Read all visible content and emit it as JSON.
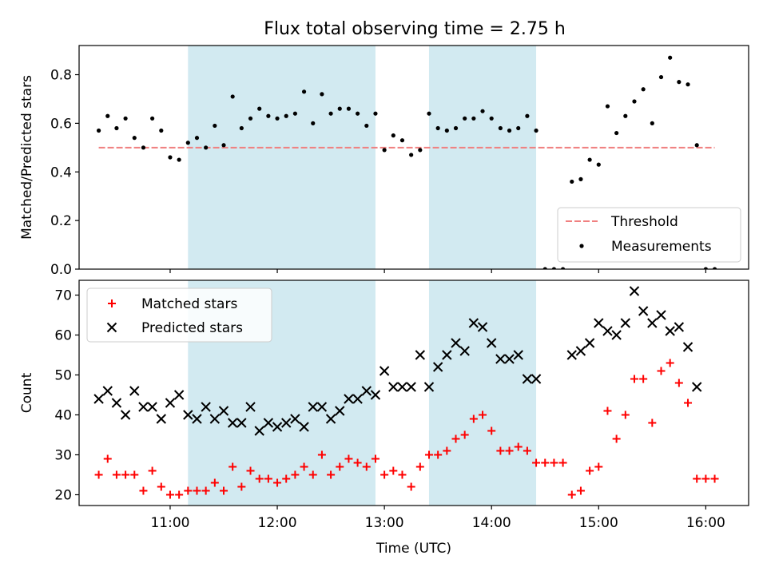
{
  "figure_title": "Flux total observing time = 2.75 h",
  "chart_data": [
    {
      "type": "scatter",
      "title": "Flux total observing time = 2.75 h",
      "xlabel": "",
      "ylabel": "Matched/Predicted stars",
      "x_range": [
        "10:09",
        "16:24"
      ],
      "ylim": [
        0,
        0.92
      ],
      "yticks": [
        "0.0",
        "0.2",
        "0.4",
        "0.6",
        "0.8"
      ],
      "x_tick_values": [
        "11:00",
        "12:00",
        "13:00",
        "14:00",
        "15:00",
        "16:00"
      ],
      "shaded_intervals": [
        [
          "11:10",
          "12:55"
        ],
        [
          "13:25",
          "14:25"
        ]
      ],
      "shade_color": "#add8e6",
      "threshold": {
        "name": "Threshold",
        "y": 0.5,
        "x_from": "10:20",
        "x_to": "16:05",
        "color": "#f08080"
      },
      "series": [
        {
          "name": "Measurements",
          "color": "#000000",
          "points": [
            [
              "10:20",
              0.57
            ],
            [
              "10:25",
              0.63
            ],
            [
              "10:30",
              0.58
            ],
            [
              "10:35",
              0.62
            ],
            [
              "10:40",
              0.54
            ],
            [
              "10:45",
              0.5
            ],
            [
              "10:50",
              0.62
            ],
            [
              "10:55",
              0.57
            ],
            [
              "11:00",
              0.46
            ],
            [
              "11:05",
              0.45
            ],
            [
              "11:10",
              0.52
            ],
            [
              "11:15",
              0.54
            ],
            [
              "11:20",
              0.5
            ],
            [
              "11:25",
              0.59
            ],
            [
              "11:30",
              0.51
            ],
            [
              "11:35",
              0.71
            ],
            [
              "11:40",
              0.58
            ],
            [
              "11:45",
              0.62
            ],
            [
              "11:50",
              0.66
            ],
            [
              "11:55",
              0.63
            ],
            [
              "12:00",
              0.62
            ],
            [
              "12:05",
              0.63
            ],
            [
              "12:10",
              0.64
            ],
            [
              "12:15",
              0.73
            ],
            [
              "12:20",
              0.6
            ],
            [
              "12:25",
              0.72
            ],
            [
              "12:30",
              0.64
            ],
            [
              "12:35",
              0.66
            ],
            [
              "12:40",
              0.66
            ],
            [
              "12:45",
              0.64
            ],
            [
              "12:50",
              0.59
            ],
            [
              "12:55",
              0.64
            ],
            [
              "13:00",
              0.49
            ],
            [
              "13:05",
              0.55
            ],
            [
              "13:10",
              0.53
            ],
            [
              "13:15",
              0.47
            ],
            [
              "13:20",
              0.49
            ],
            [
              "13:25",
              0.64
            ],
            [
              "13:30",
              0.58
            ],
            [
              "13:35",
              0.57
            ],
            [
              "13:40",
              0.58
            ],
            [
              "13:45",
              0.62
            ],
            [
              "13:50",
              0.62
            ],
            [
              "13:55",
              0.65
            ],
            [
              "14:00",
              0.62
            ],
            [
              "14:05",
              0.58
            ],
            [
              "14:10",
              0.57
            ],
            [
              "14:15",
              0.58
            ],
            [
              "14:20",
              0.63
            ],
            [
              "14:25",
              0.57
            ],
            [
              "14:30",
              0.0
            ],
            [
              "14:35",
              0.0
            ],
            [
              "14:40",
              0.0
            ],
            [
              "14:45",
              0.36
            ],
            [
              "14:50",
              0.37
            ],
            [
              "14:55",
              0.45
            ],
            [
              "15:00",
              0.43
            ],
            [
              "15:05",
              0.67
            ],
            [
              "15:10",
              0.56
            ],
            [
              "15:15",
              0.63
            ],
            [
              "15:20",
              0.69
            ],
            [
              "15:25",
              0.74
            ],
            [
              "15:30",
              0.6
            ],
            [
              "15:35",
              0.79
            ],
            [
              "15:40",
              0.87
            ],
            [
              "15:45",
              0.77
            ],
            [
              "15:50",
              0.76
            ],
            [
              "15:55",
              0.51
            ],
            [
              "16:00",
              0.0
            ],
            [
              "16:05",
              0.0
            ]
          ]
        }
      ],
      "legend": {
        "position": "lower-right",
        "entries": [
          "Threshold",
          "Measurements"
        ]
      }
    },
    {
      "type": "scatter",
      "title": "",
      "xlabel": "Time (UTC)",
      "ylabel": "Count",
      "x_range": [
        "10:09",
        "16:24"
      ],
      "ylim": [
        17.3,
        73.7
      ],
      "yticks": [
        "20",
        "30",
        "40",
        "50",
        "60",
        "70"
      ],
      "xticks": [
        "11:00",
        "12:00",
        "13:00",
        "14:00",
        "15:00",
        "16:00"
      ],
      "x_tick_values": [
        "11:00",
        "12:00",
        "13:00",
        "14:00",
        "15:00",
        "16:00"
      ],
      "shaded_intervals": [
        [
          "11:10",
          "12:55"
        ],
        [
          "13:25",
          "14:25"
        ]
      ],
      "shade_color": "#add8e6",
      "series": [
        {
          "name": "Matched stars",
          "marker": "plus",
          "color": "#ff0000",
          "points": [
            [
              "10:20",
              25
            ],
            [
              "10:25",
              29
            ],
            [
              "10:30",
              25
            ],
            [
              "10:35",
              25
            ],
            [
              "10:40",
              25
            ],
            [
              "10:45",
              21
            ],
            [
              "10:50",
              26
            ],
            [
              "10:55",
              22
            ],
            [
              "11:00",
              20
            ],
            [
              "11:05",
              20
            ],
            [
              "11:10",
              21
            ],
            [
              "11:15",
              21
            ],
            [
              "11:20",
              21
            ],
            [
              "11:25",
              23
            ],
            [
              "11:30",
              21
            ],
            [
              "11:35",
              27
            ],
            [
              "11:40",
              22
            ],
            [
              "11:45",
              26
            ],
            [
              "11:50",
              24
            ],
            [
              "11:55",
              24
            ],
            [
              "12:00",
              23
            ],
            [
              "12:05",
              24
            ],
            [
              "12:10",
              25
            ],
            [
              "12:15",
              27
            ],
            [
              "12:20",
              25
            ],
            [
              "12:25",
              30
            ],
            [
              "12:30",
              25
            ],
            [
              "12:35",
              27
            ],
            [
              "12:40",
              29
            ],
            [
              "12:45",
              28
            ],
            [
              "12:50",
              27
            ],
            [
              "12:55",
              29
            ],
            [
              "13:00",
              25
            ],
            [
              "13:05",
              26
            ],
            [
              "13:10",
              25
            ],
            [
              "13:15",
              22
            ],
            [
              "13:20",
              27
            ],
            [
              "13:25",
              30
            ],
            [
              "13:30",
              30
            ],
            [
              "13:35",
              31
            ],
            [
              "13:40",
              34
            ],
            [
              "13:45",
              35
            ],
            [
              "13:50",
              39
            ],
            [
              "13:55",
              40
            ],
            [
              "14:00",
              36
            ],
            [
              "14:05",
              31
            ],
            [
              "14:10",
              31
            ],
            [
              "14:15",
              32
            ],
            [
              "14:20",
              31
            ],
            [
              "14:25",
              28
            ],
            [
              "14:30",
              28
            ],
            [
              "14:35",
              28
            ],
            [
              "14:40",
              28
            ],
            [
              "14:45",
              20
            ],
            [
              "14:50",
              21
            ],
            [
              "14:55",
              26
            ],
            [
              "15:00",
              27
            ],
            [
              "15:05",
              41
            ],
            [
              "15:10",
              34
            ],
            [
              "15:15",
              40
            ],
            [
              "15:20",
              49
            ],
            [
              "15:25",
              49
            ],
            [
              "15:30",
              38
            ],
            [
              "15:35",
              51
            ],
            [
              "15:40",
              53
            ],
            [
              "15:45",
              48
            ],
            [
              "15:50",
              43
            ],
            [
              "15:55",
              24
            ],
            [
              "16:00",
              24
            ],
            [
              "16:05",
              24
            ]
          ]
        },
        {
          "name": "Predicted stars",
          "marker": "x",
          "color": "#000000",
          "points": [
            [
              "10:20",
              44
            ],
            [
              "10:25",
              46
            ],
            [
              "10:30",
              43
            ],
            [
              "10:35",
              40
            ],
            [
              "10:40",
              46
            ],
            [
              "10:45",
              42
            ],
            [
              "10:50",
              42
            ],
            [
              "10:55",
              39
            ],
            [
              "11:00",
              43
            ],
            [
              "11:05",
              45
            ],
            [
              "11:10",
              40
            ],
            [
              "11:15",
              39
            ],
            [
              "11:20",
              42
            ],
            [
              "11:25",
              39
            ],
            [
              "11:30",
              41
            ],
            [
              "11:35",
              38
            ],
            [
              "11:40",
              38
            ],
            [
              "11:45",
              42
            ],
            [
              "11:50",
              36
            ],
            [
              "11:55",
              38
            ],
            [
              "12:00",
              37
            ],
            [
              "12:05",
              38
            ],
            [
              "12:10",
              39
            ],
            [
              "12:15",
              37
            ],
            [
              "12:20",
              42
            ],
            [
              "12:25",
              42
            ],
            [
              "12:30",
              39
            ],
            [
              "12:35",
              41
            ],
            [
              "12:40",
              44
            ],
            [
              "12:45",
              44
            ],
            [
              "12:50",
              46
            ],
            [
              "12:55",
              45
            ],
            [
              "13:00",
              51
            ],
            [
              "13:05",
              47
            ],
            [
              "13:10",
              47
            ],
            [
              "13:15",
              47
            ],
            [
              "13:20",
              55
            ],
            [
              "13:25",
              47
            ],
            [
              "13:30",
              52
            ],
            [
              "13:35",
              55
            ],
            [
              "13:40",
              58
            ],
            [
              "13:45",
              56
            ],
            [
              "13:50",
              63
            ],
            [
              "13:55",
              62
            ],
            [
              "14:00",
              58
            ],
            [
              "14:05",
              54
            ],
            [
              "14:10",
              54
            ],
            [
              "14:15",
              55
            ],
            [
              "14:20",
              49
            ],
            [
              "14:25",
              49
            ],
            [
              "14:45",
              55
            ],
            [
              "14:50",
              56
            ],
            [
              "14:55",
              58
            ],
            [
              "15:00",
              63
            ],
            [
              "15:05",
              61
            ],
            [
              "15:10",
              60
            ],
            [
              "15:15",
              63
            ],
            [
              "15:20",
              71
            ],
            [
              "15:25",
              66
            ],
            [
              "15:30",
              63
            ],
            [
              "15:35",
              65
            ],
            [
              "15:40",
              61
            ],
            [
              "15:45",
              62
            ],
            [
              "15:50",
              57
            ],
            [
              "15:55",
              47
            ]
          ]
        }
      ],
      "legend": {
        "position": "top-left",
        "entries": [
          "Matched stars",
          "Predicted stars"
        ]
      }
    }
  ]
}
